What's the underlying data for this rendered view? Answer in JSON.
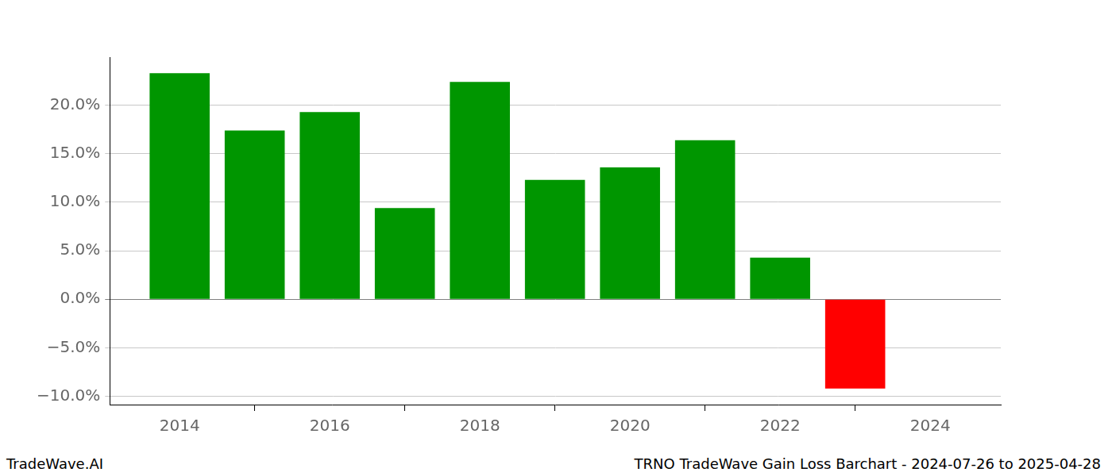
{
  "chart_data": {
    "type": "bar",
    "x": [
      2014,
      2015,
      2016,
      2017,
      2018,
      2019,
      2020,
      2021,
      2022,
      2023
    ],
    "values": [
      23.3,
      17.4,
      19.3,
      9.4,
      22.4,
      12.3,
      13.6,
      16.4,
      4.3,
      -9.2
    ],
    "colors": [
      "#009600",
      "#009600",
      "#009600",
      "#009600",
      "#009600",
      "#009600",
      "#009600",
      "#009600",
      "#009600",
      "#ff0000"
    ],
    "xlim": [
      2013.07,
      2024.94
    ],
    "xticks": [
      2014,
      2016,
      2018,
      2020,
      2022,
      2024
    ],
    "ylim": [
      -10.85,
      24.96
    ],
    "yticks": [
      {
        "value": -10,
        "label": "−10.0%"
      },
      {
        "value": -5,
        "label": "−5.0%"
      },
      {
        "value": 0,
        "label": "0.0%"
      },
      {
        "value": 5,
        "label": "5.0%"
      },
      {
        "value": 10,
        "label": "10.0%"
      },
      {
        "value": 15,
        "label": "15.0%"
      },
      {
        "value": 20,
        "label": "20.0%"
      }
    ],
    "grid": "y",
    "annotations": [
      "TradeWave.AI",
      "TRNO TradeWave Gain Loss Barchart - 2024-07-26 to 2025-04-28"
    ]
  }
}
